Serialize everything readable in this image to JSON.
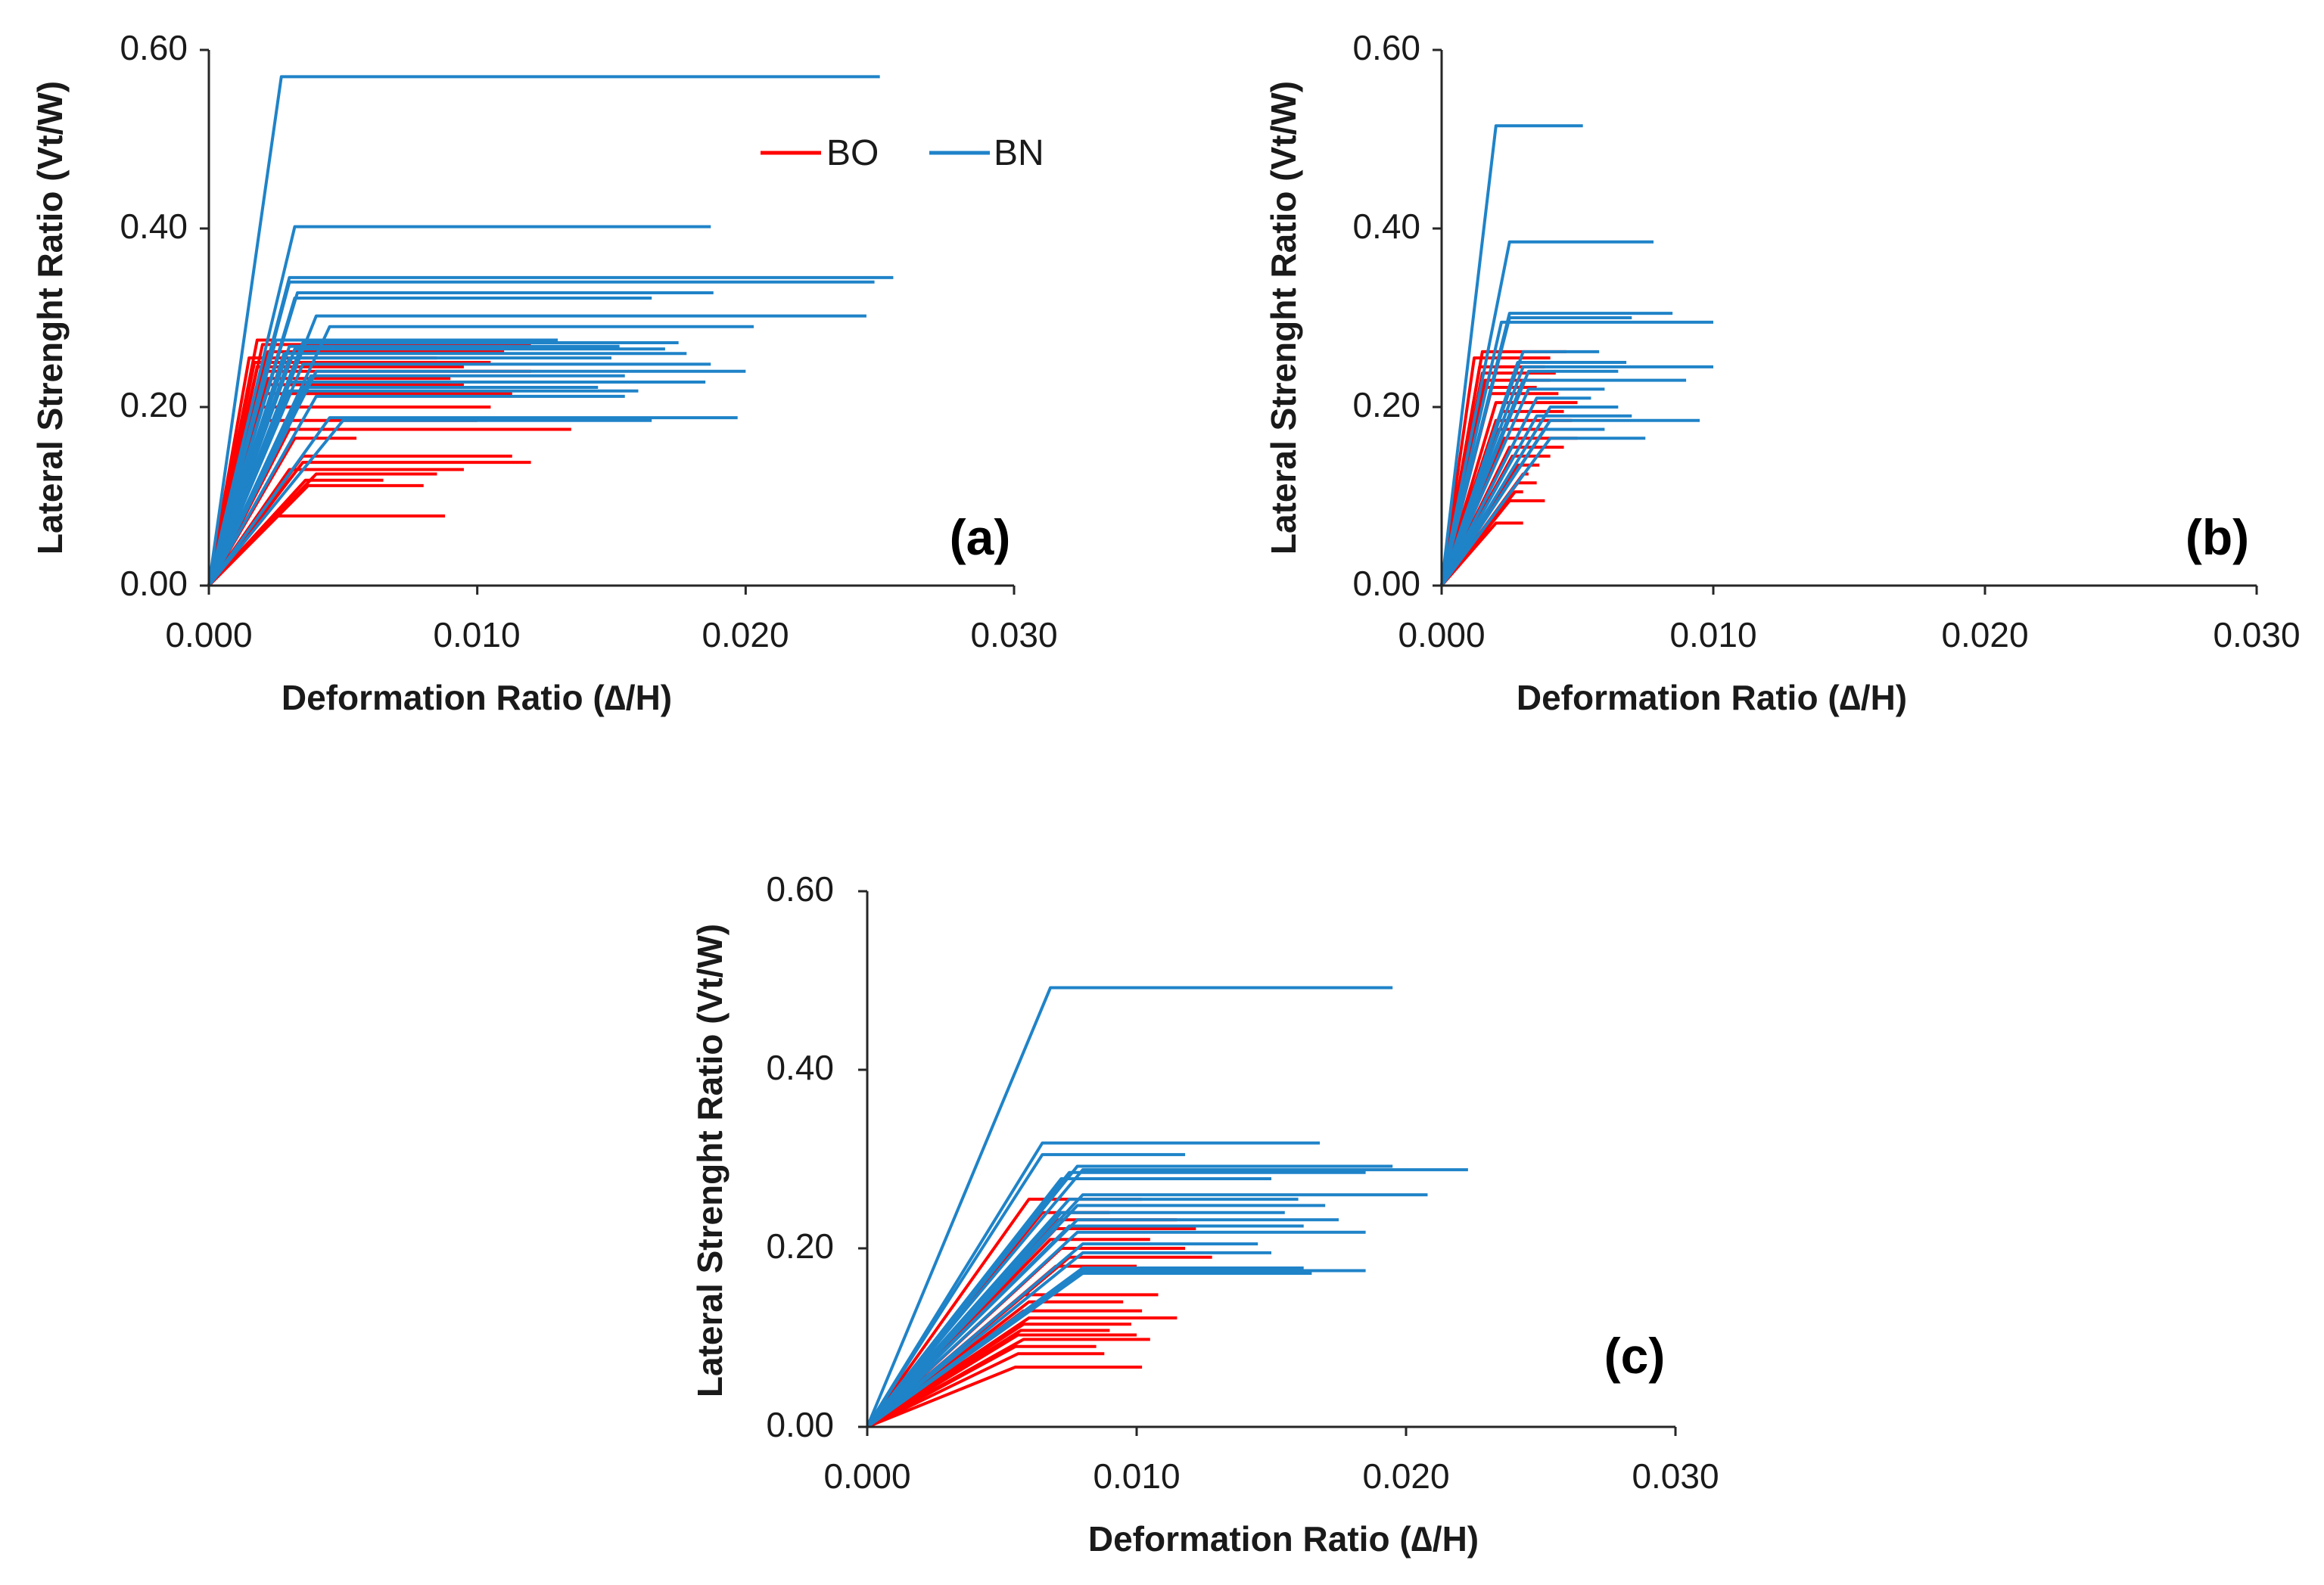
{
  "colors": {
    "BO": "#ff0000",
    "BN": "#1f83c8",
    "axis": "#262626"
  },
  "legend": [
    {
      "name": "BO",
      "color": "#ff0000"
    },
    {
      "name": "BN",
      "color": "#1f83c8"
    }
  ],
  "chart_data": [
    {
      "type": "line",
      "panel_label": "(a)",
      "xlabel": "Deformation Ratio (∆/H)",
      "ylabel": "Lateral Strenght Ratio (Vt/W)",
      "xlim": [
        0,
        0.03
      ],
      "ylim": [
        0,
        0.6
      ],
      "x_ticks": [
        "0.000",
        "0.010",
        "0.020",
        "0.030"
      ],
      "y_ticks": [
        "0.00",
        "0.20",
        "0.40",
        "0.60"
      ],
      "series": [
        {
          "name": "BO",
          "curves": [
            [
              0.0018,
              0.275,
              0.0105
            ],
            [
              0.002,
              0.27,
              0.012
            ],
            [
              0.0022,
              0.262,
              0.011
            ],
            [
              0.0015,
              0.255,
              0.0085
            ],
            [
              0.0017,
              0.25,
              0.0105
            ],
            [
              0.0018,
              0.245,
              0.0095
            ],
            [
              0.002,
              0.24,
              0.012
            ],
            [
              0.0022,
              0.232,
              0.009
            ],
            [
              0.002,
              0.225,
              0.0095
            ],
            [
              0.0021,
              0.215,
              0.0113
            ],
            [
              0.002,
              0.2,
              0.0105
            ],
            [
              0.0022,
              0.185,
              0.01
            ],
            [
              0.003,
              0.175,
              0.0135
            ],
            [
              0.0032,
              0.165,
              0.0055
            ],
            [
              0.0035,
              0.145,
              0.0113
            ],
            [
              0.0035,
              0.138,
              0.012
            ],
            [
              0.003,
              0.13,
              0.0095
            ],
            [
              0.004,
              0.125,
              0.0085
            ],
            [
              0.0036,
              0.118,
              0.0065
            ],
            [
              0.0037,
              0.112,
              0.008
            ],
            [
              0.0025,
              0.078,
              0.0088
            ]
          ]
        },
        {
          "name": "BN",
          "curves": [
            [
              0.0027,
              0.57,
              0.025
            ],
            [
              0.0032,
              0.402,
              0.0187
            ],
            [
              0.003,
              0.345,
              0.0255
            ],
            [
              0.003,
              0.34,
              0.0248
            ],
            [
              0.0033,
              0.328,
              0.0188
            ],
            [
              0.0032,
              0.322,
              0.0165
            ],
            [
              0.004,
              0.302,
              0.0245
            ],
            [
              0.0045,
              0.29,
              0.0203
            ],
            [
              0.0025,
              0.275,
              0.013
            ],
            [
              0.003,
              0.268,
              0.0153
            ],
            [
              0.0035,
              0.272,
              0.0175
            ],
            [
              0.0032,
              0.265,
              0.017
            ],
            [
              0.0028,
              0.26,
              0.0178
            ],
            [
              0.003,
              0.255,
              0.015
            ],
            [
              0.0035,
              0.248,
              0.0187
            ],
            [
              0.004,
              0.24,
              0.02
            ],
            [
              0.0038,
              0.235,
              0.0155
            ],
            [
              0.003,
              0.228,
              0.0185
            ],
            [
              0.0035,
              0.222,
              0.0145
            ],
            [
              0.003,
              0.218,
              0.016
            ],
            [
              0.004,
              0.212,
              0.0155
            ],
            [
              0.0045,
              0.188,
              0.0197
            ],
            [
              0.005,
              0.185,
              0.0165
            ]
          ]
        }
      ]
    },
    {
      "type": "line",
      "panel_label": "(b)",
      "xlabel": "Deformation Ratio (∆/H)",
      "ylabel": "Lateral Strenght Ratio (Vt/W)",
      "xlim": [
        0,
        0.03
      ],
      "ylim": [
        0,
        0.6
      ],
      "x_ticks": [
        "0.000",
        "0.010",
        "0.020",
        "0.030"
      ],
      "y_ticks": [
        "0.00",
        "0.20",
        "0.40",
        "0.60"
      ],
      "series": [
        {
          "name": "BO",
          "curves": [
            [
              0.0015,
              0.262,
              0.0046
            ],
            [
              0.0012,
              0.255,
              0.004
            ],
            [
              0.0014,
              0.245,
              0.0038
            ],
            [
              0.0015,
              0.238,
              0.0042
            ],
            [
              0.0016,
              0.23,
              0.004
            ],
            [
              0.0015,
              0.222,
              0.0035
            ],
            [
              0.0018,
              0.215,
              0.0043
            ],
            [
              0.002,
              0.205,
              0.005
            ],
            [
              0.0022,
              0.195,
              0.0045
            ],
            [
              0.002,
              0.185,
              0.0048
            ],
            [
              0.0021,
              0.175,
              0.0055
            ],
            [
              0.0023,
              0.165,
              0.005
            ],
            [
              0.0025,
              0.155,
              0.0045
            ],
            [
              0.0026,
              0.145,
              0.004
            ],
            [
              0.0028,
              0.135,
              0.0036
            ],
            [
              0.003,
              0.125,
              0.0032
            ],
            [
              0.0028,
              0.115,
              0.0035
            ],
            [
              0.0027,
              0.105,
              0.003
            ],
            [
              0.0025,
              0.095,
              0.0038
            ],
            [
              0.002,
              0.07,
              0.003
            ]
          ]
        },
        {
          "name": "BN",
          "curves": [
            [
              0.002,
              0.515,
              0.0052
            ],
            [
              0.0025,
              0.385,
              0.0078
            ],
            [
              0.0025,
              0.305,
              0.0085
            ],
            [
              0.0022,
              0.295,
              0.01
            ],
            [
              0.0025,
              0.3,
              0.007
            ],
            [
              0.003,
              0.262,
              0.0058
            ],
            [
              0.0028,
              0.25,
              0.0068
            ],
            [
              0.003,
              0.245,
              0.01
            ],
            [
              0.0032,
              0.24,
              0.0065
            ],
            [
              0.003,
              0.23,
              0.009
            ],
            [
              0.0032,
              0.22,
              0.006
            ],
            [
              0.0035,
              0.21,
              0.0055
            ],
            [
              0.004,
              0.2,
              0.0065
            ],
            [
              0.0035,
              0.19,
              0.007
            ],
            [
              0.004,
              0.185,
              0.0095
            ],
            [
              0.0038,
              0.175,
              0.006
            ],
            [
              0.004,
              0.165,
              0.0075
            ]
          ]
        }
      ]
    },
    {
      "type": "line",
      "panel_label": "(c)",
      "xlabel": "Deformation Ratio (∆/H)",
      "ylabel": "Lateral Strenght Ratio (Vt/W)",
      "xlim": [
        0,
        0.03
      ],
      "ylim": [
        0,
        0.6
      ],
      "x_ticks": [
        "0.000",
        "0.010",
        "0.020",
        "0.030"
      ],
      "y_ticks": [
        "0.00",
        "0.20",
        "0.40",
        "0.60"
      ],
      "series": [
        {
          "name": "BO",
          "curves": [
            [
              0.006,
              0.255,
              0.0102
            ],
            [
              0.0065,
              0.24,
              0.009
            ],
            [
              0.007,
              0.232,
              0.0115
            ],
            [
              0.007,
              0.222,
              0.0122
            ],
            [
              0.0068,
              0.21,
              0.0105
            ],
            [
              0.0072,
              0.2,
              0.0118
            ],
            [
              0.0075,
              0.19,
              0.0128
            ],
            [
              0.007,
              0.18,
              0.01
            ],
            [
              0.0058,
              0.148,
              0.0108
            ],
            [
              0.006,
              0.14,
              0.0095
            ],
            [
              0.0058,
              0.13,
              0.0102
            ],
            [
              0.006,
              0.122,
              0.0115
            ],
            [
              0.0058,
              0.115,
              0.0098
            ],
            [
              0.0057,
              0.108,
              0.009
            ],
            [
              0.0056,
              0.103,
              0.01
            ],
            [
              0.0058,
              0.098,
              0.0105
            ],
            [
              0.0055,
              0.09,
              0.0085
            ],
            [
              0.0056,
              0.082,
              0.0088
            ],
            [
              0.0055,
              0.067,
              0.0102
            ]
          ]
        },
        {
          "name": "BN",
          "curves": [
            [
              0.0068,
              0.492,
              0.0195
            ],
            [
              0.0065,
              0.318,
              0.0168
            ],
            [
              0.0065,
              0.305,
              0.0118
            ],
            [
              0.0078,
              0.292,
              0.0195
            ],
            [
              0.008,
              0.288,
              0.0223
            ],
            [
              0.0075,
              0.285,
              0.0185
            ],
            [
              0.0072,
              0.278,
              0.015
            ],
            [
              0.008,
              0.26,
              0.0208
            ],
            [
              0.0075,
              0.255,
              0.016
            ],
            [
              0.0078,
              0.248,
              0.017
            ],
            [
              0.0072,
              0.24,
              0.0155
            ],
            [
              0.0078,
              0.232,
              0.0175
            ],
            [
              0.0075,
              0.225,
              0.0162
            ],
            [
              0.0078,
              0.218,
              0.0185
            ],
            [
              0.008,
              0.205,
              0.0145
            ],
            [
              0.008,
              0.195,
              0.015
            ],
            [
              0.008,
              0.178,
              0.0162
            ],
            [
              0.008,
              0.175,
              0.0185
            ],
            [
              0.008,
              0.172,
              0.0165
            ]
          ]
        }
      ]
    }
  ]
}
